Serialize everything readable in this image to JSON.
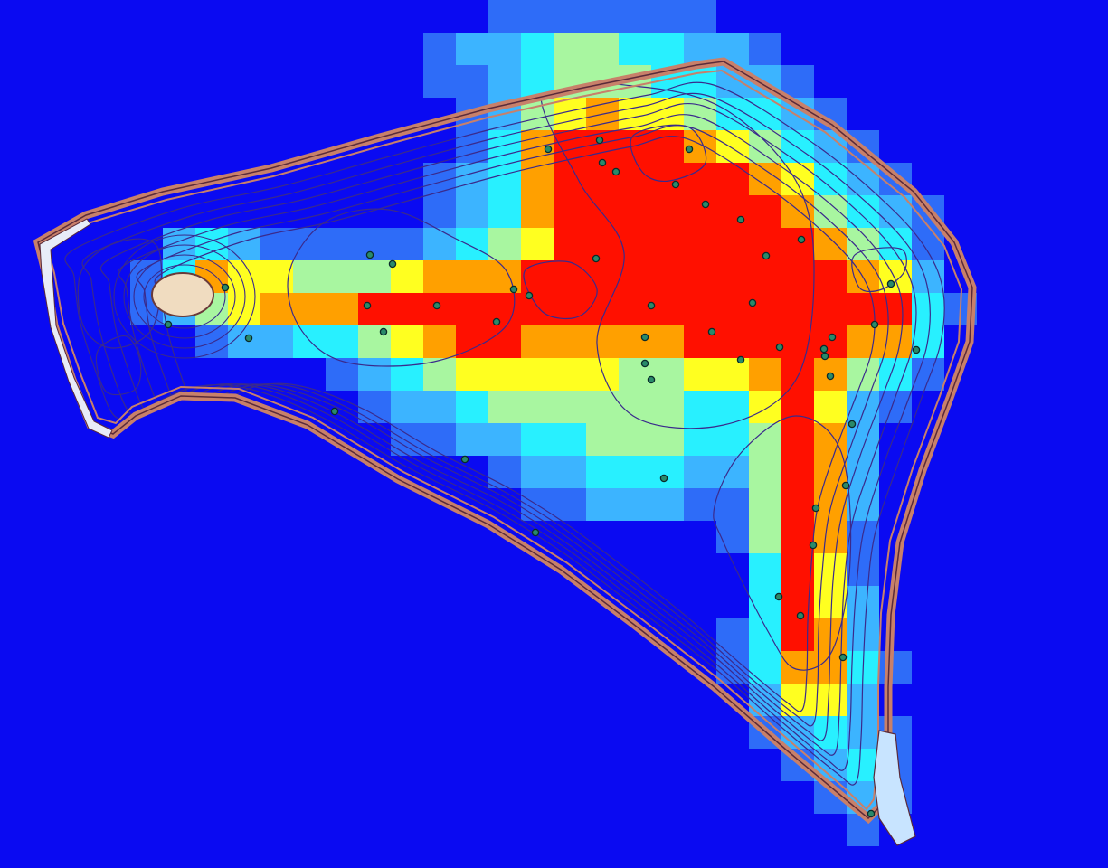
{
  "map": {
    "colors": {
      "background": "#0a0af2",
      "level_0": "#0a0af2",
      "level_1": "#2e6cf8",
      "level_2": "#3cb4ff",
      "level_3": "#28f0ff",
      "level_4": "#a8f6a0",
      "level_5": "#ffff20",
      "level_6": "#ffa000",
      "level_7": "#ff1000",
      "shoreline": "#c8806a",
      "shoreline_dark": "#5a2a3a",
      "contour": "#3a2a8c",
      "island_fill": "#f0dcc0",
      "island_edge": "#6a3a3a",
      "inlet_fill": "#c8e4ff",
      "sample_point_fill": "#2a8a6a",
      "sample_point_edge": "#0a2a2a"
    },
    "heat_core_regions": [
      {
        "id": "west-arm"
      },
      {
        "id": "north-central"
      },
      {
        "id": "south-arm"
      }
    ],
    "sample_point_count": 54,
    "features": [
      "shoreline",
      "depth-contours",
      "island",
      "inlet",
      "sample-points",
      "concentration-grid"
    ]
  }
}
